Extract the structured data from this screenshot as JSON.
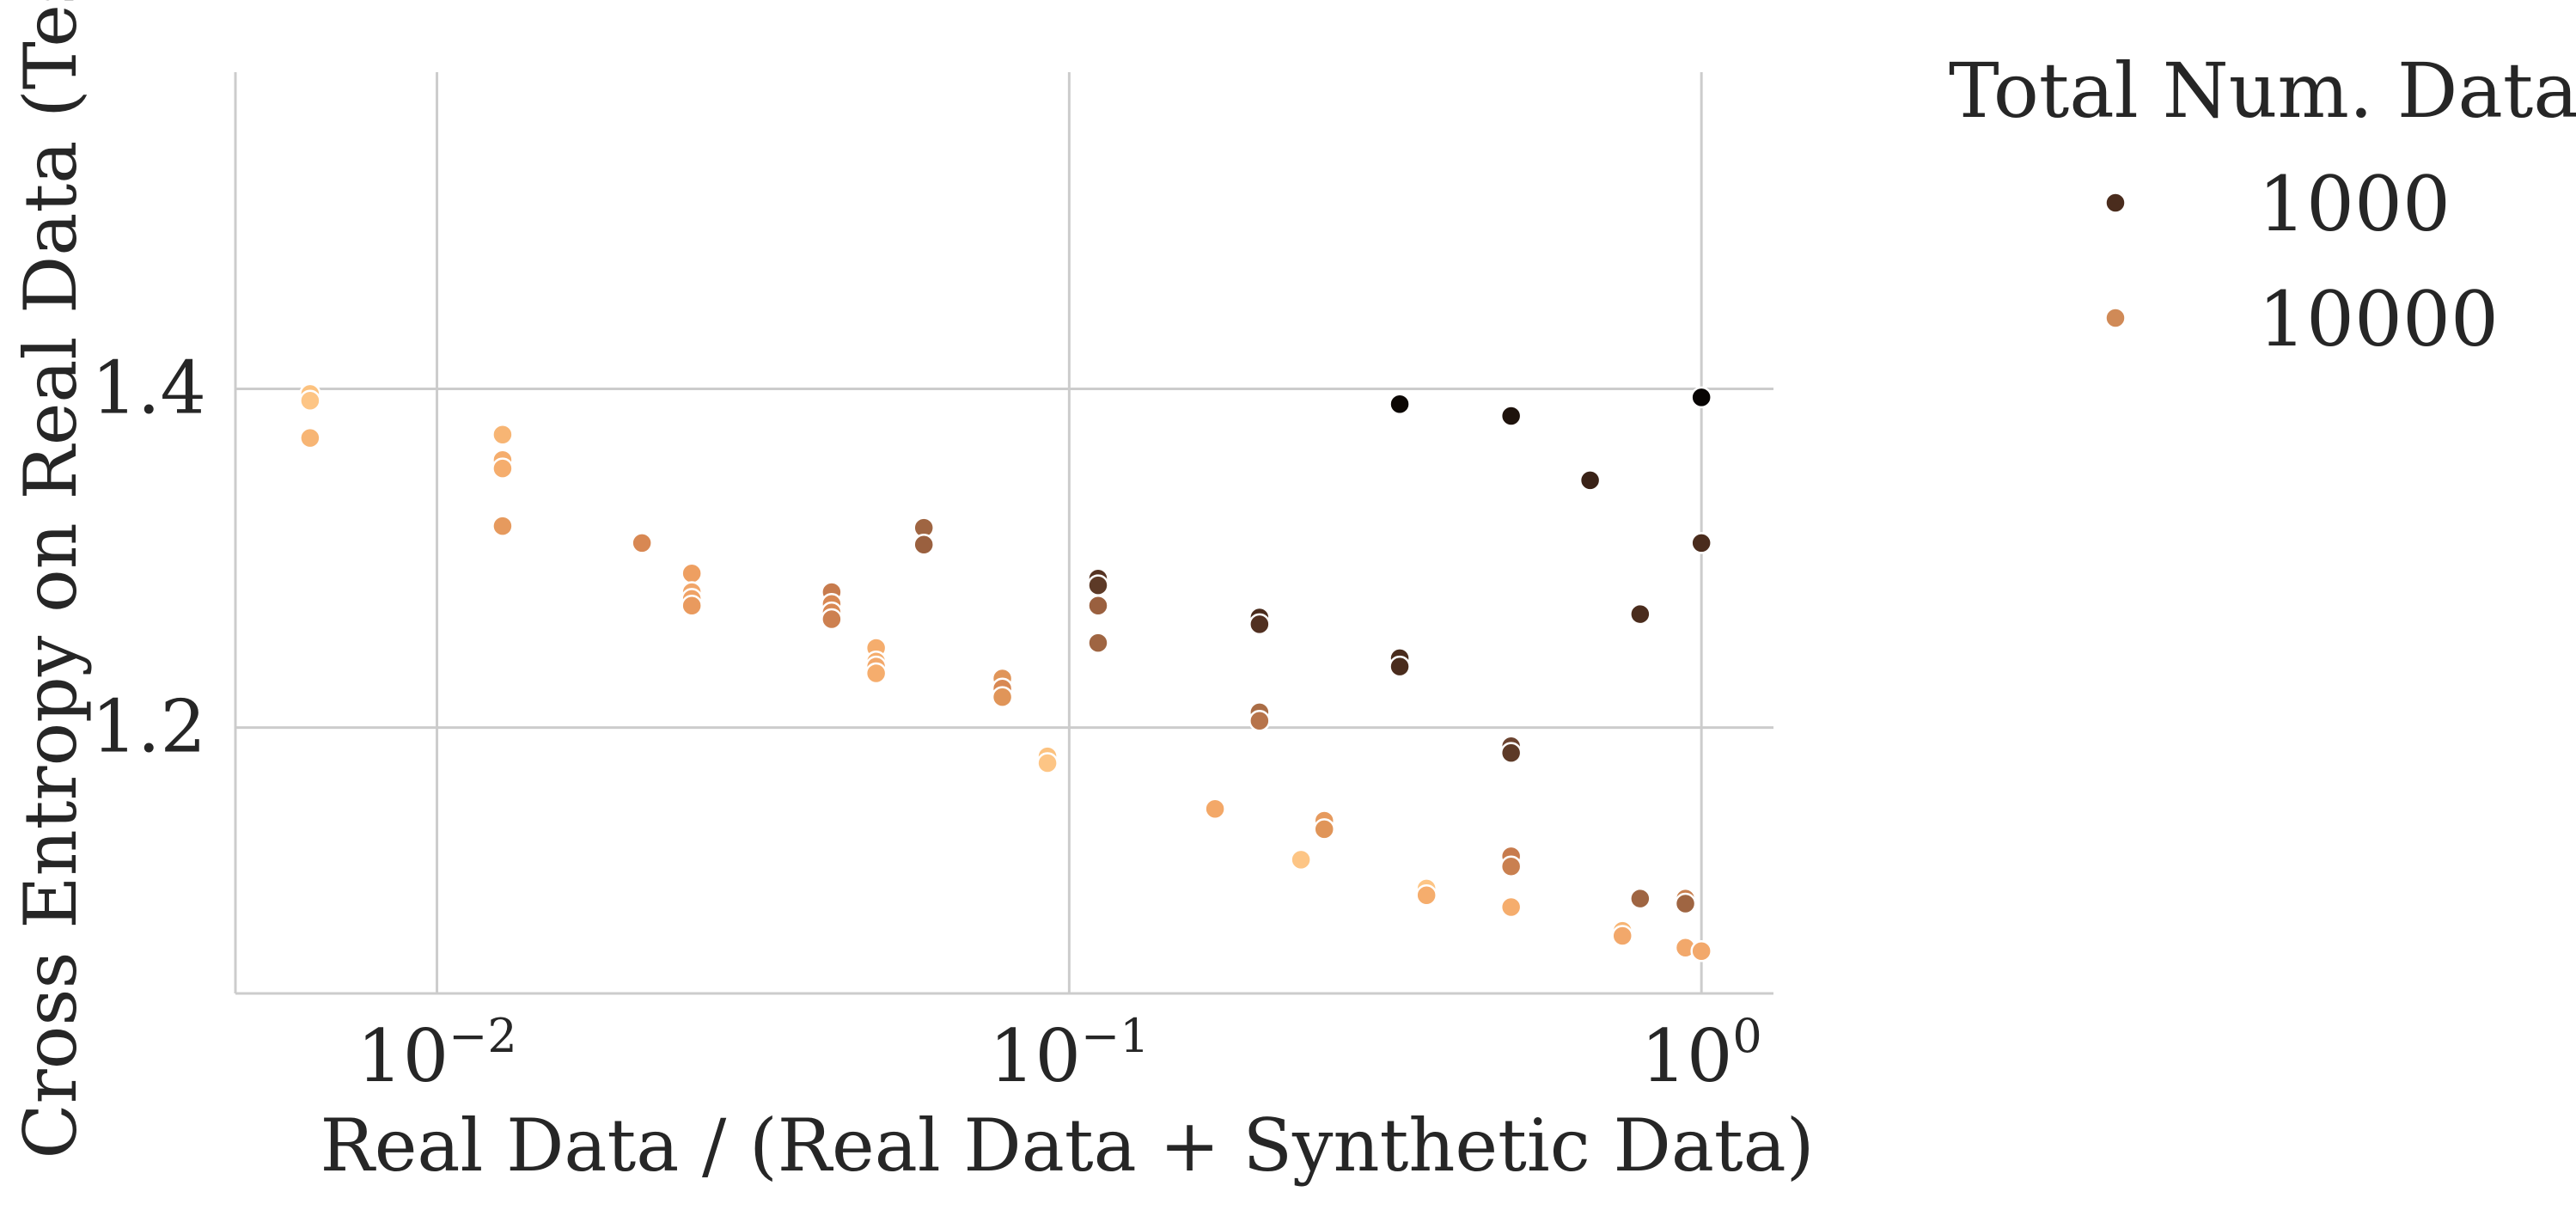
{
  "chart_data": {
    "type": "scatter",
    "title": "",
    "xlabel": "Real Data / (Real Data + Synthetic Data)",
    "ylabel": "Cross Entropy on Real Data (Test)",
    "xscale": "log",
    "xlim": [
      0.0048,
      1.3
    ],
    "ylim": [
      1.043,
      1.587
    ],
    "x_ticks": [
      {
        "value": 0.01,
        "base": "10",
        "exp": "−2"
      },
      {
        "value": 0.1,
        "base": "10",
        "exp": "−1"
      },
      {
        "value": 1,
        "base": "10",
        "exp": "0"
      }
    ],
    "y_ticks": [
      {
        "value": 1.2,
        "label": "1.2"
      },
      {
        "value": 1.4,
        "label": "1.4"
      }
    ],
    "grid": true,
    "legend": {
      "title": "Total Num. Data",
      "placement": "outside-top-right",
      "entries": [
        {
          "label": "1000",
          "color": "#4a2c1d"
        },
        {
          "label": "10000",
          "color": "#d08a57"
        }
      ]
    },
    "colors": {
      "grid": "#cccccc",
      "axis": "#cccccc",
      "text": "#262626",
      "point_edge": "#ffffff"
    },
    "points": [
      {
        "x": 0.0063,
        "y": 1.397,
        "color": "#fcc27f"
      },
      {
        "x": 0.0063,
        "y": 1.393,
        "color": "#fdc585"
      },
      {
        "x": 0.0063,
        "y": 1.371,
        "color": "#f7b574"
      },
      {
        "x": 0.0127,
        "y": 1.373,
        "color": "#f7b574"
      },
      {
        "x": 0.0127,
        "y": 1.358,
        "color": "#f5ad6d"
      },
      {
        "x": 0.0127,
        "y": 1.353,
        "color": "#f5ad6d"
      },
      {
        "x": 0.0127,
        "y": 1.319,
        "color": "#e69a5e"
      },
      {
        "x": 0.0211,
        "y": 1.309,
        "color": "#d88853"
      },
      {
        "x": 0.0253,
        "y": 1.291,
        "color": "#ee9f61"
      },
      {
        "x": 0.0253,
        "y": 1.28,
        "color": "#f1a66a"
      },
      {
        "x": 0.0253,
        "y": 1.276,
        "color": "#efa266"
      },
      {
        "x": 0.0253,
        "y": 1.272,
        "color": "#e99a5e"
      },
      {
        "x": 0.0421,
        "y": 1.28,
        "color": "#c77b4d"
      },
      {
        "x": 0.0421,
        "y": 1.273,
        "color": "#d88853"
      },
      {
        "x": 0.0421,
        "y": 1.268,
        "color": "#d88853"
      },
      {
        "x": 0.0421,
        "y": 1.264,
        "color": "#cd8050"
      },
      {
        "x": 0.0495,
        "y": 1.247,
        "color": "#f5ad6d"
      },
      {
        "x": 0.0495,
        "y": 1.239,
        "color": "#f5ad6d"
      },
      {
        "x": 0.0495,
        "y": 1.236,
        "color": "#f2a86b"
      },
      {
        "x": 0.0495,
        "y": 1.232,
        "color": "#f5ad6d"
      },
      {
        "x": 0.0589,
        "y": 1.318,
        "color": "#9f6542"
      },
      {
        "x": 0.0589,
        "y": 1.308,
        "color": "#9a603f"
      },
      {
        "x": 0.0784,
        "y": 1.229,
        "color": "#e09559"
      },
      {
        "x": 0.0784,
        "y": 1.223,
        "color": "#d88853"
      },
      {
        "x": 0.0784,
        "y": 1.218,
        "color": "#e09559"
      },
      {
        "x": 0.0924,
        "y": 1.183,
        "color": "#fcc27f"
      },
      {
        "x": 0.0924,
        "y": 1.179,
        "color": "#fdc585"
      },
      {
        "x": 0.1111,
        "y": 1.288,
        "color": "#553322"
      },
      {
        "x": 0.1111,
        "y": 1.284,
        "color": "#5d3a27"
      },
      {
        "x": 0.1111,
        "y": 1.272,
        "color": "#9a603f"
      },
      {
        "x": 0.1111,
        "y": 1.25,
        "color": "#9f6542"
      },
      {
        "x": 0.1701,
        "y": 1.152,
        "color": "#f3a868"
      },
      {
        "x": 0.2,
        "y": 1.265,
        "color": "#4a2c1d"
      },
      {
        "x": 0.2,
        "y": 1.261,
        "color": "#513021"
      },
      {
        "x": 0.2,
        "y": 1.209,
        "color": "#aa6d46"
      },
      {
        "x": 0.2,
        "y": 1.204,
        "color": "#b7744b"
      },
      {
        "x": 0.2326,
        "y": 1.122,
        "color": "#fdc585"
      },
      {
        "x": 0.2532,
        "y": 1.145,
        "color": "#e69a5e"
      },
      {
        "x": 0.2532,
        "y": 1.14,
        "color": "#e09559"
      },
      {
        "x": 0.3333,
        "y": 1.391,
        "color": "#0c0704"
      },
      {
        "x": 0.3333,
        "y": 1.241,
        "color": "#4a2c1d"
      },
      {
        "x": 0.3333,
        "y": 1.236,
        "color": "#4a2c1d"
      },
      {
        "x": 0.3674,
        "y": 1.105,
        "color": "#fdc585"
      },
      {
        "x": 0.3674,
        "y": 1.101,
        "color": "#f5ad6d"
      },
      {
        "x": 0.5,
        "y": 1.384,
        "color": "#1e120c"
      },
      {
        "x": 0.5,
        "y": 1.189,
        "color": "#6b4330"
      },
      {
        "x": 0.5,
        "y": 1.185,
        "color": "#5d3a27"
      },
      {
        "x": 0.5,
        "y": 1.124,
        "color": "#c77b4d"
      },
      {
        "x": 0.5,
        "y": 1.118,
        "color": "#c98050"
      },
      {
        "x": 0.5,
        "y": 1.094,
        "color": "#f5ad6d"
      },
      {
        "x": 0.6667,
        "y": 1.346,
        "color": "#3a2217"
      },
      {
        "x": 0.75,
        "y": 1.08,
        "color": "#f7b574"
      },
      {
        "x": 0.75,
        "y": 1.077,
        "color": "#f2a86b"
      },
      {
        "x": 0.8,
        "y": 1.267,
        "color": "#4a2c1d"
      },
      {
        "x": 0.8,
        "y": 1.099,
        "color": "#9f6542"
      },
      {
        "x": 0.9434,
        "y": 1.07,
        "color": "#f2a86b"
      },
      {
        "x": 0.9434,
        "y": 1.099,
        "color": "#c98050"
      },
      {
        "x": 0.9434,
        "y": 1.096,
        "color": "#9f6542"
      },
      {
        "x": 1.0,
        "y": 1.395,
        "color": "#070403"
      },
      {
        "x": 1.0,
        "y": 1.309,
        "color": "#4a2c1d"
      },
      {
        "x": 1.0,
        "y": 1.068,
        "color": "#f2a86b"
      }
    ]
  }
}
